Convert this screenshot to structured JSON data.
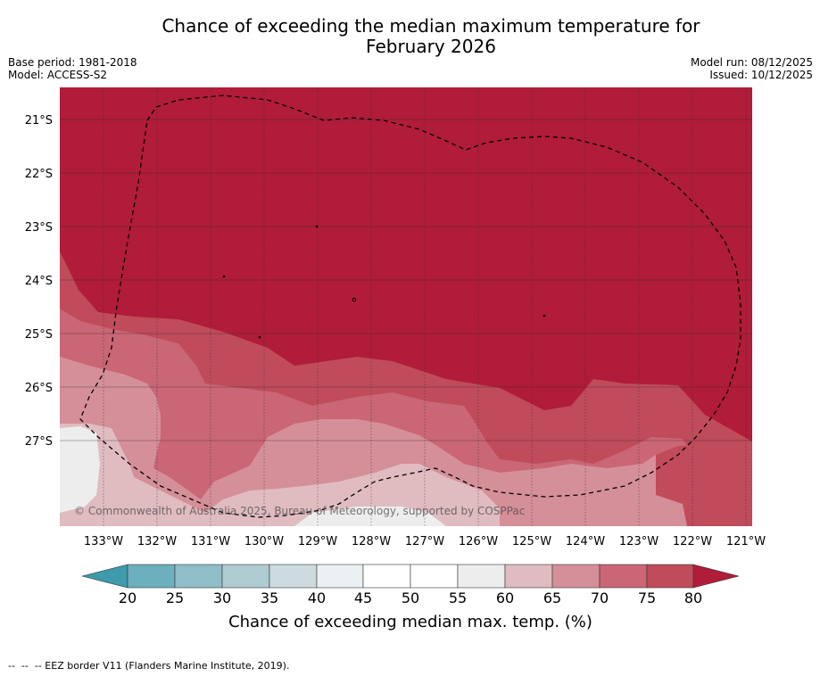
{
  "title": {
    "line1": "Chance of exceeding the median maximum temperature for",
    "line2": "February 2026"
  },
  "meta": {
    "base_period": "Base period: 1981-2018",
    "model": "Model: ACCESS-S2",
    "model_run": "Model run: 08/12/2025",
    "issued": "Issued: 10/12/2025"
  },
  "map": {
    "latitude_labels": [
      "21°S",
      "22°S",
      "23°S",
      "24°S",
      "25°S",
      "26°S",
      "27°S"
    ],
    "longitude_labels": [
      "133°W",
      "132°W",
      "131°W",
      "130°W",
      "129°W",
      "128°W",
      "127°W",
      "126°W",
      "125°W",
      "124°W",
      "123°W",
      "122°W",
      "121°W"
    ],
    "copyright": "© Commonwealth of Australia 2025, Bureau of Meteorology, supported by COSPPac",
    "boundary": "EEZ border (dashed)"
  },
  "colorbar": {
    "tick_labels": [
      "20",
      "25",
      "30",
      "35",
      "40",
      "45",
      "50",
      "55",
      "60",
      "65",
      "70",
      "75",
      "80"
    ],
    "label": "Chance of exceeding median max. temp. (%)",
    "colors": {
      "below_20": "#3f9aab",
      "20-25": "#6cafbe",
      "25-30": "#8fbdc8",
      "30-35": "#aecbd2",
      "35-40": "#cddbe0",
      "40-45": "#ebf0f2",
      "45-50": "#ffffff",
      "50-55": "#ffffff",
      "55-60": "#eeedee",
      "60-65": "#e0bcc1",
      "65-70": "#d58f98",
      "70-75": "#ca6676",
      "75-80": "#c04b5a",
      "above_80": "#b01c39"
    }
  },
  "footer": "--  --  -- EEZ border V11 (Flanders Marine Institute, 2019)."
}
